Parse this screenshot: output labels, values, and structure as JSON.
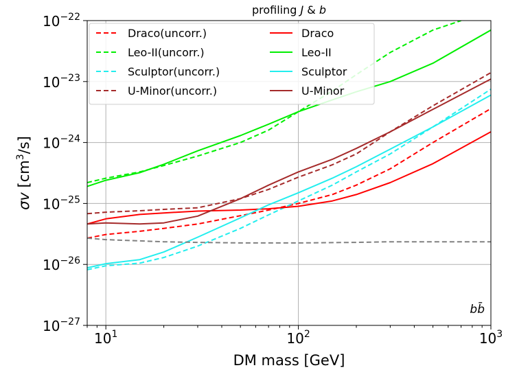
{
  "chart_data": {
    "type": "line",
    "title": "profiling J & b",
    "title_parts": {
      "prefix": "profiling ",
      "j": "J",
      "mid": " & ",
      "b": "b"
    },
    "xlabel": "DM mass [GeV]",
    "ylabel_parts": {
      "sigma": "σ",
      "v": "v",
      "open": " [cm",
      "sup": "3",
      "close": "/s]"
    },
    "x_scale": "log",
    "y_scale": "log",
    "xlim": [
      8,
      1000
    ],
    "ylim": [
      1e-27,
      1e-22
    ],
    "x_ticks": [
      {
        "value": 10,
        "base": "10",
        "exp": "1"
      },
      {
        "value": 100,
        "base": "10",
        "exp": "2"
      },
      {
        "value": 1000,
        "base": "10",
        "exp": "3"
      }
    ],
    "y_ticks": [
      {
        "value": 1e-27,
        "base": "10",
        "exp": "−27"
      },
      {
        "value": 1e-26,
        "base": "10",
        "exp": "−26"
      },
      {
        "value": 1e-25,
        "base": "10",
        "exp": "−25"
      },
      {
        "value": 1e-24,
        "base": "10",
        "exp": "−24"
      },
      {
        "value": 1e-23,
        "base": "10",
        "exp": "−23"
      },
      {
        "value": 1e-22,
        "base": "10",
        "exp": "−22"
      }
    ],
    "grid": true,
    "legend_position": "top-left",
    "annotation": {
      "text": "bb",
      "base": "b",
      "bar": "b̄"
    },
    "series": [
      {
        "name": "Draco(uncorr.)",
        "color": "#ff0000",
        "dash": "dashed",
        "x": [
          8,
          10,
          15,
          20,
          30,
          50,
          70,
          100,
          150,
          200,
          300,
          500,
          1000
        ],
        "y": [
          2.7e-26,
          3.1e-26,
          3.5e-26,
          3.9e-26,
          4.6e-26,
          6.3e-26,
          7.8e-26,
          1e-25,
          1.4e-25,
          2e-25,
          3.7e-25,
          1e-24,
          3.6e-24
        ]
      },
      {
        "name": "Leo-II(uncorr.)",
        "color": "#00ee00",
        "dash": "dashed",
        "x": [
          8,
          10,
          15,
          20,
          30,
          50,
          70,
          100,
          150,
          200,
          300,
          500,
          700
        ],
        "y": [
          2.2e-25,
          2.6e-25,
          3.3e-25,
          4.2e-25,
          6e-25,
          1e-24,
          1.6e-24,
          3.2e-24,
          7e-24,
          1.3e-23,
          3e-23,
          7e-23,
          1e-22
        ]
      },
      {
        "name": "Sculptor(uncorr.)",
        "color": "#22eeee",
        "dash": "dashed",
        "x": [
          8,
          10,
          15,
          20,
          30,
          50,
          70,
          100,
          150,
          200,
          300,
          500,
          1000
        ],
        "y": [
          8.2e-27,
          9.5e-27,
          1.05e-26,
          1.3e-26,
          2e-26,
          3.9e-26,
          6.5e-26,
          1.1e-25,
          2e-25,
          3.3e-25,
          6.5e-25,
          1.8e-24,
          7.5e-24
        ]
      },
      {
        "name": "U-Minor(uncorr.)",
        "color": "#a52a2a",
        "dash": "dashed",
        "x": [
          8,
          10,
          15,
          20,
          30,
          50,
          70,
          100,
          150,
          200,
          300,
          500,
          1000
        ],
        "y": [
          6.8e-26,
          7.2e-26,
          7.6e-26,
          8e-26,
          8.5e-26,
          1.2e-25,
          1.7e-25,
          2.7e-25,
          4.3e-25,
          6.5e-25,
          1.5e-24,
          4e-24,
          1.4e-23
        ]
      },
      {
        "name": "Draco",
        "color": "#ff0000",
        "dash": "solid",
        "x": [
          8,
          10,
          15,
          20,
          30,
          50,
          70,
          100,
          150,
          200,
          300,
          500,
          1000
        ],
        "y": [
          4.6e-26,
          5.6e-26,
          6.6e-26,
          7e-26,
          7.5e-26,
          7.8e-26,
          8.2e-26,
          9e-26,
          1.1e-25,
          1.4e-25,
          2.2e-25,
          4.5e-25,
          1.5e-24
        ]
      },
      {
        "name": "Leo-II",
        "color": "#00ee00",
        "dash": "solid",
        "x": [
          8,
          10,
          15,
          20,
          30,
          50,
          70,
          100,
          150,
          200,
          300,
          500,
          1000
        ],
        "y": [
          1.9e-25,
          2.4e-25,
          3.2e-25,
          4.4e-25,
          7.3e-25,
          1.3e-24,
          2e-24,
          3.2e-24,
          5e-24,
          6.8e-24,
          1e-23,
          2e-23,
          7e-23
        ]
      },
      {
        "name": "Sculptor",
        "color": "#22eeee",
        "dash": "solid",
        "x": [
          8,
          10,
          15,
          20,
          30,
          50,
          70,
          100,
          150,
          200,
          300,
          500,
          1000
        ],
        "y": [
          8.8e-27,
          1.03e-26,
          1.2e-26,
          1.6e-26,
          2.8e-26,
          5.8e-26,
          9.5e-26,
          1.5e-25,
          2.6e-25,
          4e-25,
          7.8e-25,
          1.8e-24,
          6e-24
        ]
      },
      {
        "name": "U-Minor",
        "color": "#a52a2a",
        "dash": "solid",
        "x": [
          8,
          10,
          15,
          20,
          30,
          50,
          70,
          100,
          150,
          200,
          300,
          500,
          1000
        ],
        "y": [
          4.6e-26,
          4.8e-26,
          4.6e-26,
          4.8e-26,
          6.2e-26,
          1.2e-25,
          2e-25,
          3.3e-25,
          5.3e-25,
          8e-25,
          1.5e-24,
          3.5e-24,
          1.1e-23
        ]
      },
      {
        "name": "",
        "color": "#808080",
        "dash": "dashed",
        "in_legend": false,
        "x": [
          8,
          10,
          20,
          30,
          50,
          100,
          200,
          300,
          500,
          1000
        ],
        "y": [
          2.7e-26,
          2.55e-26,
          2.35e-26,
          2.3e-26,
          2.25e-26,
          2.25e-26,
          2.3e-26,
          2.35e-26,
          2.35e-26,
          2.35e-26
        ]
      }
    ],
    "legend_columns": [
      [
        "Draco(uncorr.)",
        "Leo-II(uncorr.)",
        "Sculptor(uncorr.)",
        "U-Minor(uncorr.)"
      ],
      [
        "Draco",
        "Leo-II",
        "Sculptor",
        "U-Minor"
      ]
    ]
  }
}
